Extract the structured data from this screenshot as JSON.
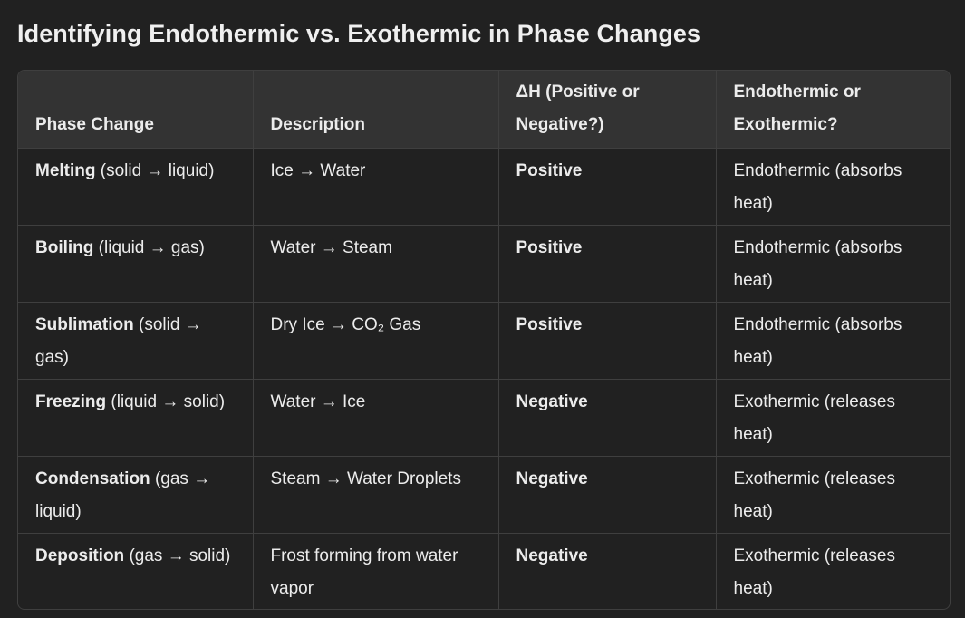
{
  "title": "Identifying Endothermic vs. Exothermic in Phase Changes",
  "table": {
    "headers": [
      "Phase Change",
      "Description",
      "ΔH (Positive or Negative?)",
      "Endothermic or Exothermic?"
    ],
    "rows": [
      {
        "phase_bold": "Melting",
        "phase_rest": " (solid → liquid)",
        "description": "Ice → Water",
        "delta_h": "Positive",
        "type": "Endothermic (absorbs heat)"
      },
      {
        "phase_bold": "Boiling",
        "phase_rest": " (liquid → gas)",
        "description": "Water → Steam",
        "delta_h": "Positive",
        "type": "Endothermic (absorbs heat)"
      },
      {
        "phase_bold": "Sublimation",
        "phase_rest": " (solid → gas)",
        "description": "Dry Ice → CO₂ Gas",
        "delta_h": "Positive",
        "type": "Endothermic (absorbs heat)"
      },
      {
        "phase_bold": "Freezing",
        "phase_rest": " (liquid → solid)",
        "description": "Water → Ice",
        "delta_h": "Negative",
        "type": "Exothermic (releases heat)"
      },
      {
        "phase_bold": "Condensation",
        "phase_rest": " (gas → liquid)",
        "description": "Steam → Water Droplets",
        "delta_h": "Negative",
        "type": "Exothermic (releases heat)"
      },
      {
        "phase_bold": "Deposition",
        "phase_rest": " (gas → solid)",
        "description": "Frost forming from water vapor",
        "delta_h": "Negative",
        "type": "Exothermic (releases heat)"
      }
    ]
  }
}
